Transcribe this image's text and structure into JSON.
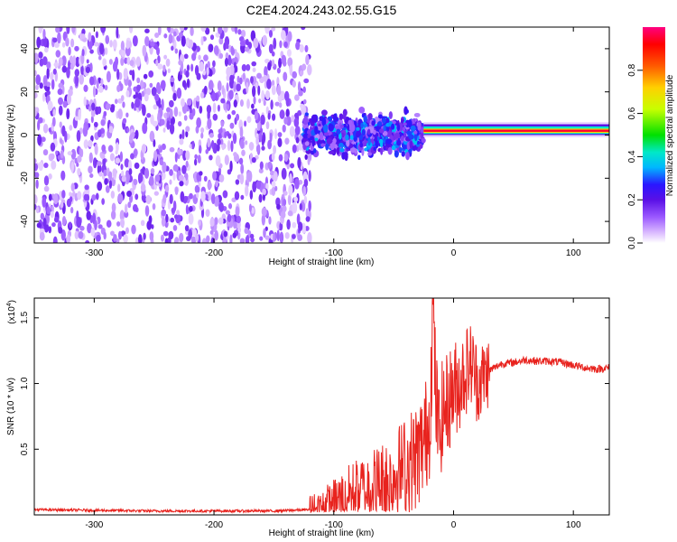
{
  "figure_title": "C2E4.2024.243.02.55.G15",
  "colors": {
    "snr_line": "#e8231e",
    "axis": "#000000",
    "colormap": [
      "#ffffff",
      "#d9b8ff",
      "#9b59ff",
      "#5a10e6",
      "#2a16ff",
      "#00b7ff",
      "#00e8c8",
      "#00e000",
      "#c8ff00",
      "#ffd000",
      "#ff5a00",
      "#ff0000",
      "#ff0080"
    ]
  },
  "chart_data": [
    {
      "type": "heatmap",
      "title": "",
      "xlabel": "Height of straight line (km)",
      "ylabel": "Frequency (Hz)",
      "xlim": [
        -350,
        130
      ],
      "ylim": [
        -50,
        50
      ],
      "xticks": [
        -300,
        -200,
        -100,
        0,
        100
      ],
      "yticks": [
        -40,
        -20,
        0,
        20,
        40
      ],
      "grid": false,
      "colorbar": {
        "label": "Normalized spectral amplitude",
        "range": [
          0,
          1
        ],
        "ticks": [
          "0.0",
          "0.2",
          "0.4",
          "0.6",
          "0.8"
        ]
      },
      "regions": [
        {
          "x": [
            -350,
            -120
          ],
          "frequency": [
            -50,
            50
          ],
          "amplitude": 0.15,
          "description_of_pattern": "scattered noise"
        },
        {
          "x": [
            -125,
            -25
          ],
          "frequency": [
            -12,
            12
          ],
          "amplitude": 0.35
        },
        {
          "x": [
            -25,
            130
          ],
          "frequency": [
            1,
            3
          ],
          "amplitude": 0.95
        }
      ]
    },
    {
      "type": "line",
      "title": "",
      "xlabel": "Height of straight line (km)",
      "ylabel": "SNR (10 * v/v)",
      "y_scale_label": "(x10",
      "y_scale_exponent": "4",
      "xlim": [
        -350,
        130
      ],
      "ylim": [
        0,
        1.65
      ],
      "xticks": [
        -300,
        -200,
        -100,
        0,
        100
      ],
      "yticks": [
        0.5,
        1.0,
        1.5
      ],
      "ytick_labels": [
        "0.5",
        "1.0",
        "1.5"
      ],
      "grid": false,
      "series": [
        {
          "x": [
            -350,
            -300,
            -250,
            -200,
            -150,
            -120,
            -110,
            -100,
            -90,
            -80,
            -70,
            -60,
            -50,
            -40,
            -30,
            -25,
            -20,
            -17,
            -15,
            -12,
            -10,
            -5,
            0,
            5,
            10,
            15,
            20,
            25,
            30,
            40,
            50,
            60,
            70,
            80,
            90,
            100,
            110,
            120,
            130
          ],
          "values": [
            0.04,
            0.035,
            0.03,
            0.03,
            0.03,
            0.04,
            0.06,
            0.1,
            0.15,
            0.2,
            0.22,
            0.25,
            0.3,
            0.38,
            0.45,
            0.55,
            0.72,
            1.6,
            0.9,
            0.6,
            0.75,
            0.85,
            0.95,
            1.0,
            1.1,
            1.15,
            1.0,
            1.05,
            1.1,
            1.15,
            1.16,
            1.18,
            1.17,
            1.17,
            1.16,
            1.14,
            1.12,
            1.11,
            1.12
          ]
        }
      ]
    }
  ]
}
